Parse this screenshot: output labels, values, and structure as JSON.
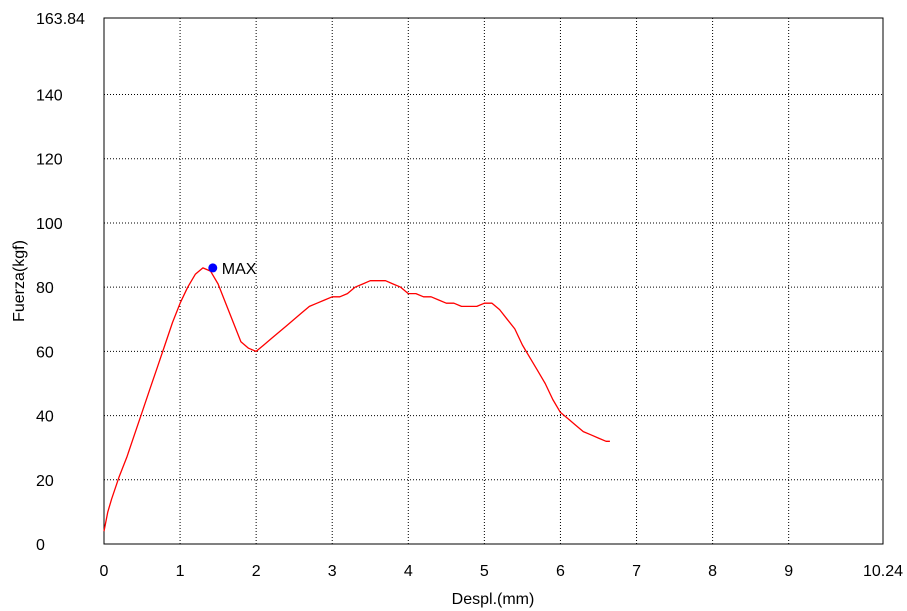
{
  "chart_data": {
    "type": "line",
    "title": "",
    "xlabel": "Despl.(mm)",
    "ylabel": "Fuerza(kgf)",
    "xlim": [
      0,
      10.24
    ],
    "ylim": [
      0,
      163.84
    ],
    "x_ticks": [
      0,
      1,
      2,
      3,
      4,
      5,
      6,
      7,
      8,
      9,
      10.24
    ],
    "x_tick_labels": [
      "0",
      "1",
      "2",
      "3",
      "4",
      "5",
      "6",
      "7",
      "8",
      "9",
      "10.24"
    ],
    "y_ticks": [
      0,
      20,
      40,
      60,
      80,
      100,
      120,
      140,
      163.84
    ],
    "y_tick_labels": [
      "0",
      "20",
      "40",
      "60",
      "80",
      "100",
      "120",
      "140",
      "163.84"
    ],
    "grid": true,
    "series": [
      {
        "color": "#ff0000",
        "x": [
          0.0,
          0.05,
          0.1,
          0.2,
          0.3,
          0.4,
          0.5,
          0.6,
          0.7,
          0.8,
          0.9,
          1.0,
          1.1,
          1.2,
          1.3,
          1.4,
          1.5,
          1.6,
          1.7,
          1.8,
          1.9,
          2.0,
          2.1,
          2.2,
          2.3,
          2.4,
          2.5,
          2.6,
          2.7,
          2.8,
          2.9,
          3.0,
          3.1,
          3.2,
          3.3,
          3.4,
          3.5,
          3.6,
          3.7,
          3.8,
          3.9,
          4.0,
          4.1,
          4.2,
          4.3,
          4.4,
          4.5,
          4.6,
          4.7,
          4.8,
          4.9,
          5.0,
          5.1,
          5.2,
          5.3,
          5.4,
          5.5,
          5.6,
          5.7,
          5.8,
          5.9,
          6.0,
          6.1,
          6.2,
          6.3,
          6.4,
          6.5,
          6.6,
          6.65
        ],
        "y": [
          4,
          10,
          14,
          21,
          27,
          34,
          41,
          48,
          55,
          62,
          69,
          75,
          80,
          84,
          86,
          85,
          81,
          75,
          69,
          63,
          61,
          60,
          62,
          64,
          66,
          68,
          70,
          72,
          74,
          75,
          76,
          77,
          77,
          78,
          80,
          81,
          82,
          82,
          82,
          81,
          80,
          78,
          78,
          77,
          77,
          76,
          75,
          75,
          74,
          74,
          74,
          75,
          75,
          73,
          70,
          67,
          62,
          58,
          54,
          50,
          45,
          41,
          39,
          37,
          35,
          34,
          33,
          32,
          32
        ]
      }
    ],
    "annotations": [
      {
        "label": "MAX",
        "x": 1.43,
        "y": 86,
        "color": "#0000ff"
      }
    ]
  }
}
